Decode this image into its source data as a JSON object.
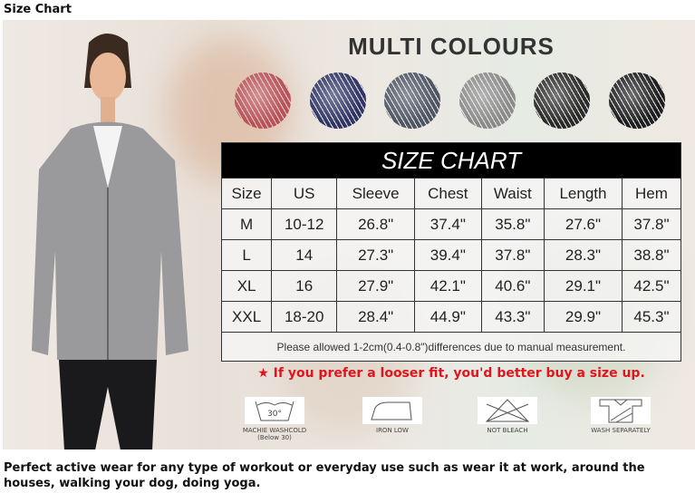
{
  "page_title": "Size Chart",
  "banner": "MULTI COLOURS",
  "swatch_colors": [
    "#b8525a",
    "#2e3566",
    "#4d5565",
    "#8a8a8a",
    "#2a2a2a",
    "#1e1e20"
  ],
  "table": {
    "title": "SIZE CHART",
    "headers": [
      "Size",
      "US",
      "Sleeve",
      "Chest",
      "Waist",
      "Length",
      "Hem"
    ],
    "rows": [
      [
        "M",
        "10-12",
        "26.8\"",
        "37.4\"",
        "35.8\"",
        "27.6\"",
        "37.8\""
      ],
      [
        "L",
        "14",
        "27.3\"",
        "39.4\"",
        "37.8\"",
        "28.3\"",
        "38.8\""
      ],
      [
        "XL",
        "16",
        "27.9\"",
        "42.1\"",
        "40.6\"",
        "29.1\"",
        "42.5\""
      ],
      [
        "XXL",
        "18-20",
        "28.4\"",
        "44.9\"",
        "43.3\"",
        "29.9\"",
        "45.3\""
      ]
    ],
    "note": "Please allowed 1-2cm(0.4-0.8\")differences due to manual measurement."
  },
  "tip": "★ If you prefer a looser fit, you'd better buy a size up.",
  "care": [
    {
      "icon": "wash-30-icon",
      "label": "MACHIE WASHCOLD",
      "sub": "(Below 30)",
      "symbol": "30°"
    },
    {
      "icon": "iron-low-icon",
      "label": "IRON LOW"
    },
    {
      "icon": "not-bleach-icon",
      "label": "NOT BLEACH"
    },
    {
      "icon": "wash-separately-icon",
      "label": "WASH SEPARATELY"
    }
  ],
  "description": "Perfect active wear for any type of workout or everyday use such as wear it at work, around the houses, walking your dog, doing yoga."
}
